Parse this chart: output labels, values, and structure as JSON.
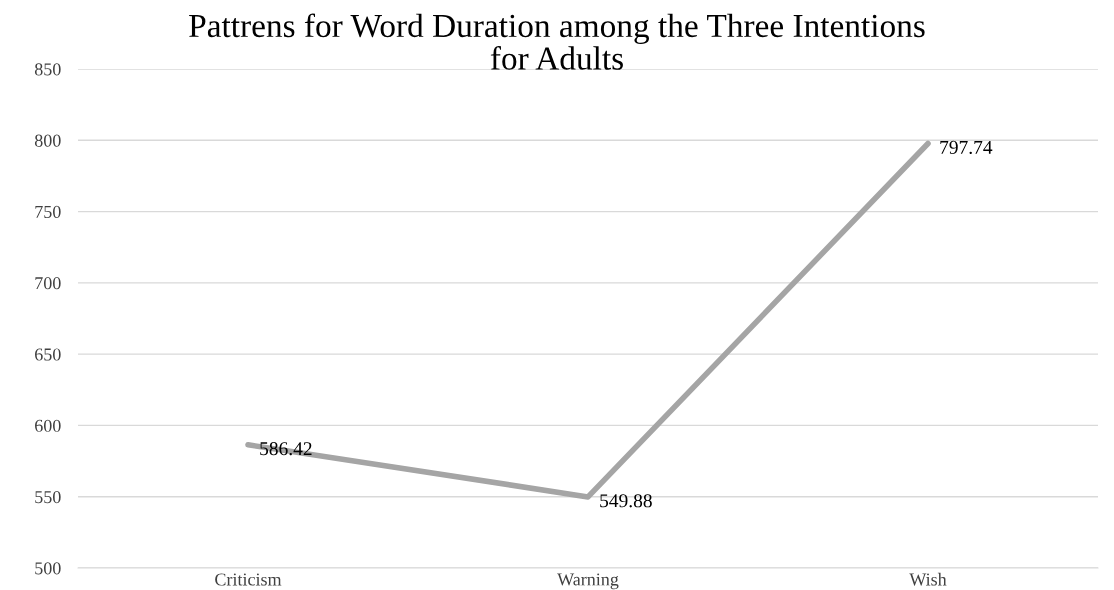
{
  "chart_data": {
    "type": "line",
    "title": "Pattrens for Word Duration among the Three Intentions\nfor Adults",
    "categories": [
      "Criticism",
      "Warning",
      "Wish"
    ],
    "series": [
      {
        "color": "#a5a5a5",
        "values": [
          586.42,
          549.88,
          797.74
        ]
      }
    ],
    "ylim": [
      500,
      850
    ],
    "yticks": [
      500,
      550,
      600,
      650,
      700,
      750,
      800,
      850
    ],
    "grid": "y",
    "data_labels": true,
    "legend": false,
    "marker": "none",
    "line_style": "solid"
  }
}
